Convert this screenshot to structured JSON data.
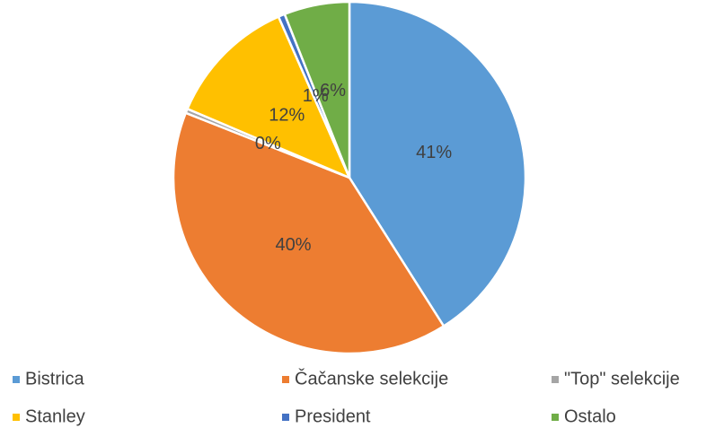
{
  "chart_data": {
    "type": "pie",
    "categories": [
      "Bistrica",
      "Čačanske selekcije",
      "\"Top\" selekcije",
      "Stanley",
      "President",
      "Ostalo"
    ],
    "values": [
      41,
      40,
      0.4,
      12,
      0.6,
      6
    ],
    "value_labels": [
      "41%",
      "40%",
      "0%",
      "12%",
      "1%",
      "6%"
    ],
    "colors": [
      "#5b9bd5",
      "#ed7d31",
      "#a5a5a5",
      "#ffc000",
      "#4472c4",
      "#70ad47"
    ],
    "legend": "bottom"
  }
}
